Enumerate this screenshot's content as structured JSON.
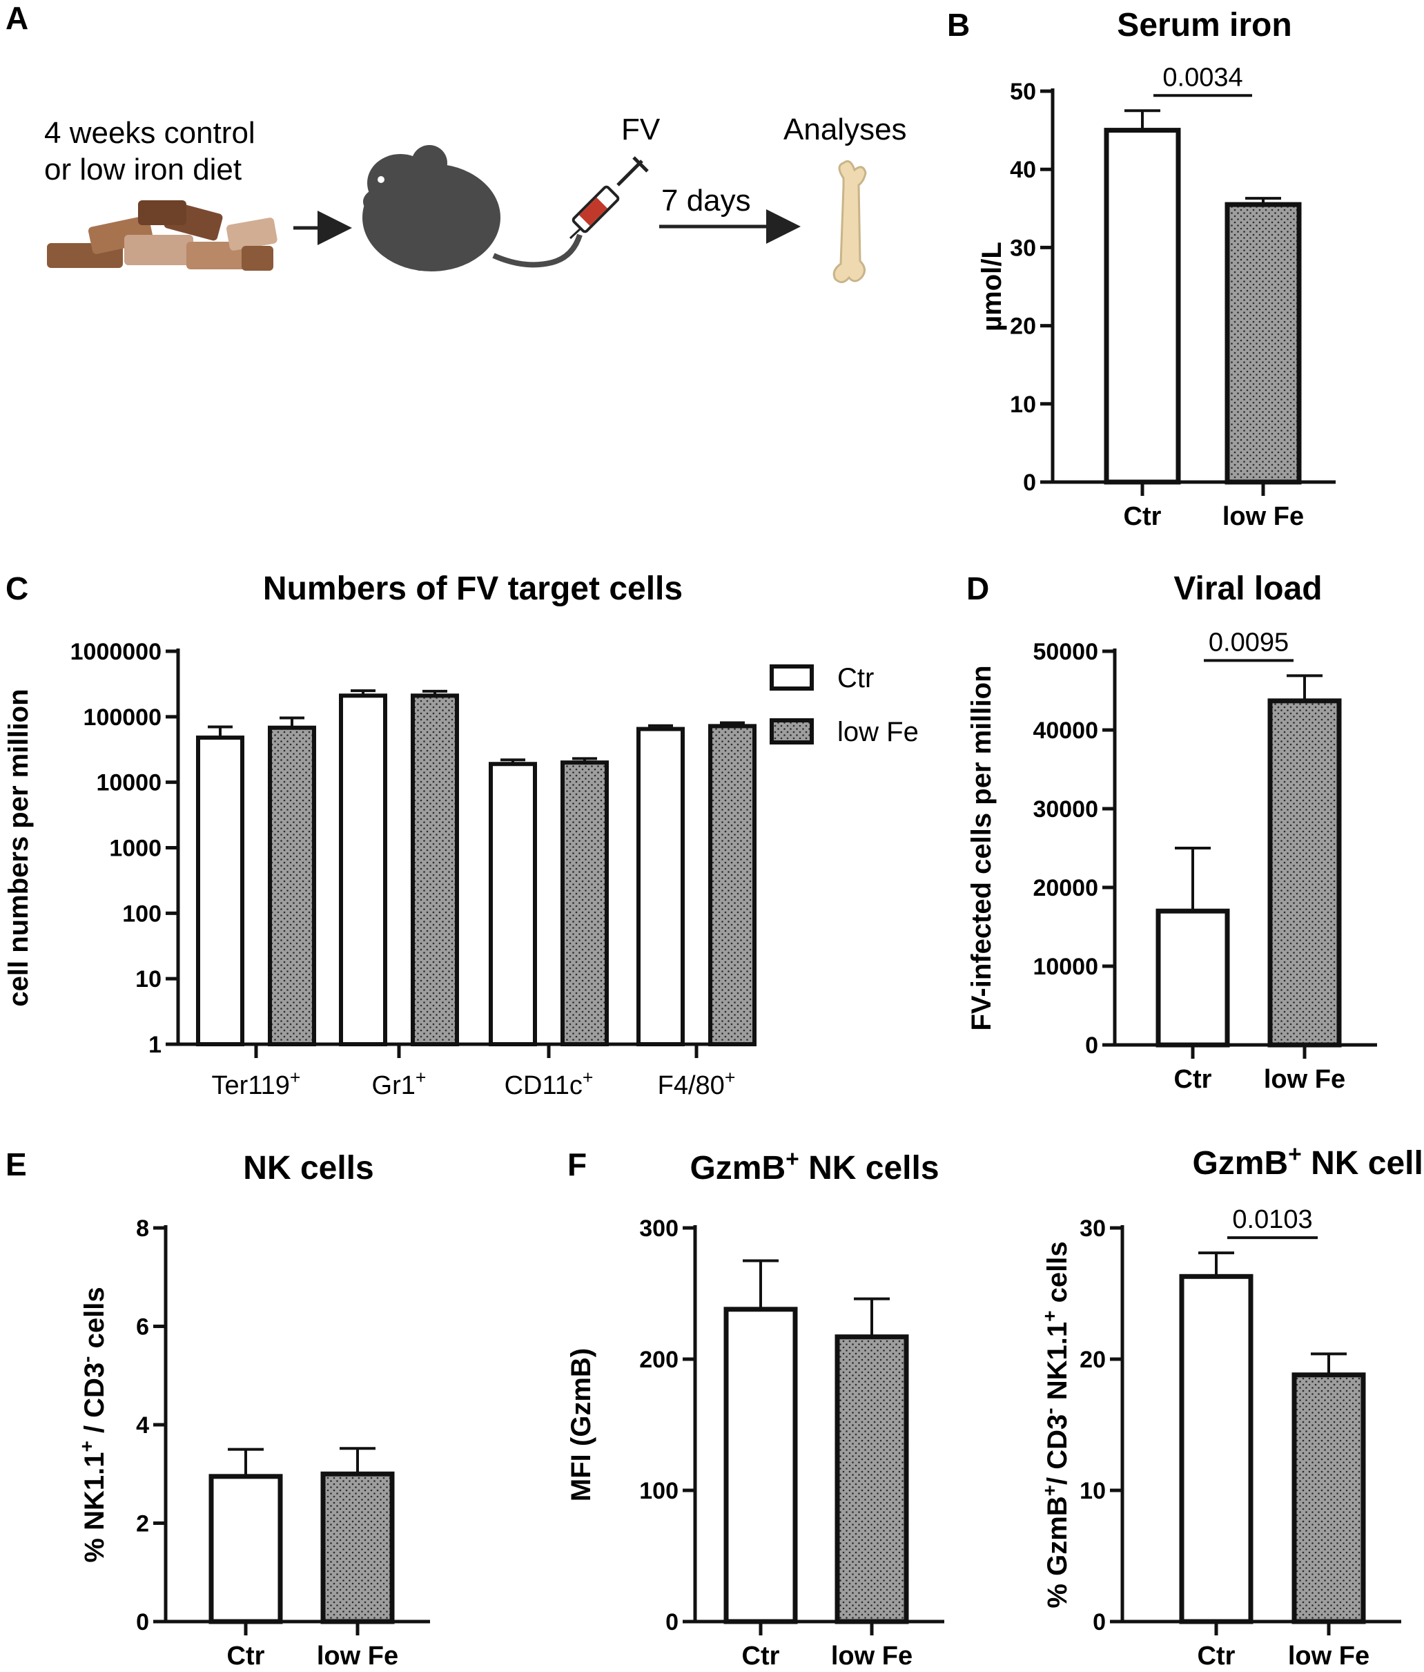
{
  "panels": {
    "A": "A",
    "B": "B",
    "C": "C",
    "D": "D",
    "E": "E",
    "F": "F"
  },
  "schematic": {
    "diet_line1": "4 weeks control",
    "diet_line2": "or low iron diet",
    "injection": "FV",
    "interval": "7 days",
    "analyses": "Analyses"
  },
  "colors": {
    "ctr_fill": "#ffffff",
    "lowfe_fill": "#9e9e9e",
    "bar_stroke": "#111111",
    "mouse": "#4a4a4a",
    "pellet_dark": "#8a5a3b",
    "pellet_light": "#c9a38a",
    "bone": "#efd9b0"
  },
  "legend": {
    "ctr": "Ctr",
    "lowfe": "low Fe"
  },
  "chart_data": [
    {
      "id": "B",
      "type": "bar",
      "title": "Serum iron",
      "ylabel": "µmol/L",
      "categories": [
        "Ctr",
        "low Fe"
      ],
      "values": [
        45,
        35.5
      ],
      "errors": [
        2.5,
        0.8
      ],
      "ylim": [
        0,
        50
      ],
      "yticks": [
        0,
        10,
        20,
        30,
        40,
        50
      ],
      "ytick_labels": [
        "0",
        "10",
        "20",
        "30",
        "40",
        "50"
      ],
      "pvalue": "0.0034"
    },
    {
      "id": "C",
      "type": "bar",
      "title": "Numbers of FV target cells",
      "ylabel": "cell numbers per million",
      "yscale": "log",
      "categories": [
        "Ter119",
        "Gr1",
        "CD11c",
        "F4/80"
      ],
      "category_superscripts": [
        "+",
        "+",
        "+",
        "+"
      ],
      "series": [
        {
          "name": "Ctr",
          "values": [
            48000,
            210000,
            19000,
            65000
          ],
          "errors": [
            22000,
            40000,
            3000,
            8000
          ]
        },
        {
          "name": "low Fe",
          "values": [
            68000,
            210000,
            20000,
            72000
          ],
          "errors": [
            28000,
            35000,
            3000,
            9000
          ]
        }
      ],
      "ylim": [
        1,
        1000000
      ],
      "yticks": [
        1,
        10,
        100,
        1000,
        10000,
        100000,
        1000000
      ],
      "ytick_labels": [
        "1",
        "10",
        "100",
        "1000",
        "10000",
        "100000",
        "1000000"
      ],
      "legend_position": "top-right"
    },
    {
      "id": "D",
      "type": "bar",
      "title": "Viral load",
      "ylabel": "FV-infected cells per million",
      "categories": [
        "Ctr",
        "low Fe"
      ],
      "values": [
        17000,
        43700
      ],
      "errors": [
        8000,
        3200
      ],
      "ylim": [
        0,
        50000
      ],
      "yticks": [
        0,
        10000,
        20000,
        30000,
        40000,
        50000
      ],
      "ytick_labels": [
        "0",
        "10000",
        "20000",
        "30000",
        "40000",
        "50000"
      ],
      "pvalue": "0.0095"
    },
    {
      "id": "E",
      "type": "bar",
      "title": "NK cells",
      "ylabel": "% NK1.1+ / CD3- cells",
      "categories": [
        "Ctr",
        "low Fe"
      ],
      "values": [
        2.95,
        3.0
      ],
      "errors": [
        0.55,
        0.52
      ],
      "ylim": [
        0,
        8
      ],
      "yticks": [
        0,
        2,
        4,
        6,
        8
      ],
      "ytick_labels": [
        "0",
        "2",
        "4",
        "6",
        "8"
      ]
    },
    {
      "id": "F1",
      "type": "bar",
      "title": "GzmB+ NK cells",
      "ylabel": "MFI (GzmB)",
      "categories": [
        "Ctr",
        "low Fe"
      ],
      "values": [
        238,
        217
      ],
      "errors": [
        37,
        29
      ],
      "ylim": [
        0,
        300
      ],
      "yticks": [
        0,
        100,
        200,
        300
      ],
      "ytick_labels": [
        "0",
        "100",
        "200",
        "300"
      ]
    },
    {
      "id": "F2",
      "type": "bar",
      "title": "GzmB+ NK cells",
      "ylabel": "% GzmB+/ CD3- NK1.1+ cells",
      "categories": [
        "Ctr",
        "low Fe"
      ],
      "values": [
        26.3,
        18.8
      ],
      "errors": [
        1.8,
        1.6
      ],
      "ylim": [
        0,
        30
      ],
      "yticks": [
        0,
        10,
        20,
        30
      ],
      "ytick_labels": [
        "0",
        "10",
        "20",
        "30"
      ],
      "pvalue": "0.0103"
    }
  ]
}
